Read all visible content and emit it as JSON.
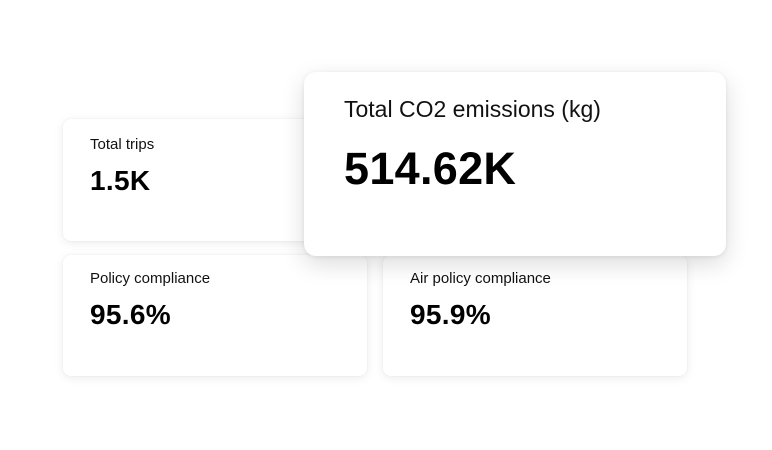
{
  "cards": {
    "total_trips": {
      "label": "Total trips",
      "value": "1.5K"
    },
    "co2": {
      "label": "Total CO2 emissions (kg)",
      "value": "514.62K"
    },
    "policy_compliance": {
      "label": "Policy compliance",
      "value": "95.6%"
    },
    "air_policy_compliance": {
      "label": "Air policy compliance",
      "value": "95.9%"
    }
  }
}
